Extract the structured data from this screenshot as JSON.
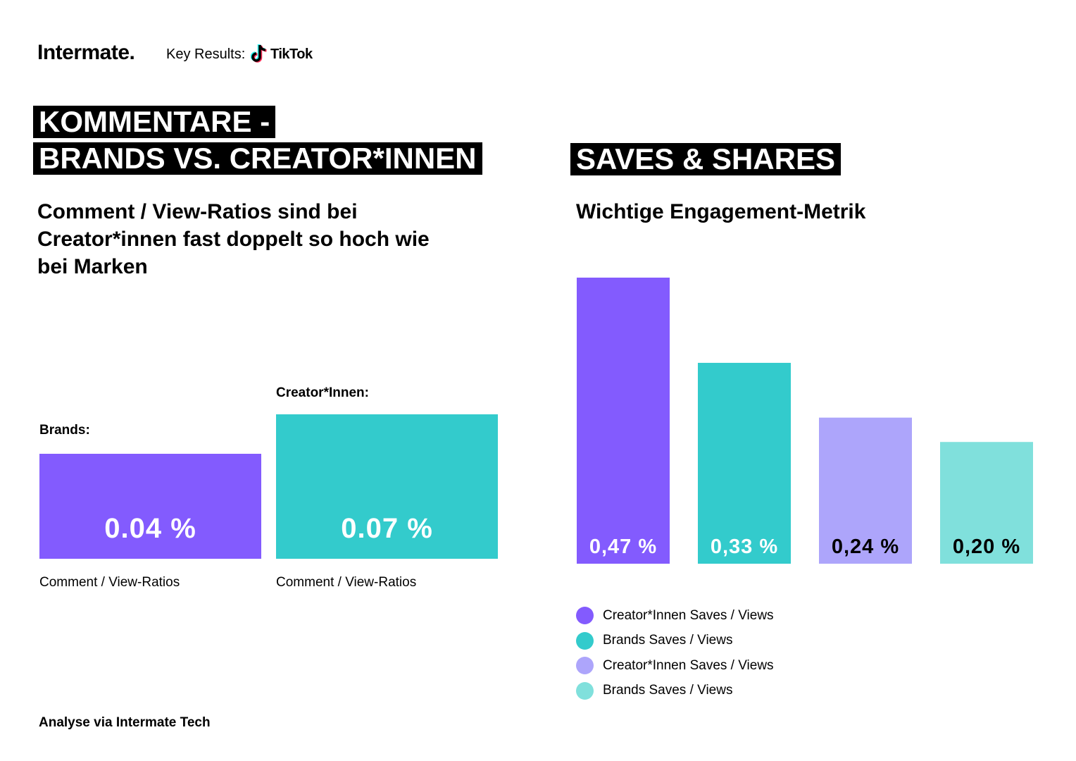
{
  "header": {
    "brand": "Intermate.",
    "key_results_label": "Key Results:",
    "platform": "TikTok",
    "platform_icon": "tiktok-note-icon"
  },
  "left": {
    "heading_line1": "KOMMENTARE -",
    "heading_line2": "BRANDS VS. CREATOR*INNEN",
    "subtitle_line1": "Comment / View-Ratios sind bei",
    "subtitle_line2": "Creator*innen fast doppelt so hoch wie",
    "subtitle_line3": "bei Marken",
    "brands_label": "Brands:",
    "brands_value": "0.04 %",
    "brands_caption": "Comment / View-Ratios",
    "creators_label": "Creator*Innen:",
    "creators_value": "0.07 %",
    "creators_caption": "Comment / View-Ratios",
    "colors": {
      "brands": "#835bfe",
      "creators": "#33cbcc"
    }
  },
  "right": {
    "heading": "SAVES & SHARES",
    "subtitle": "Wichtige Engagement-Metrik"
  },
  "chart_data": {
    "type": "bar",
    "title": "",
    "xlabel": "",
    "ylabel": "",
    "ylim": [
      0,
      0.47
    ],
    "grid": false,
    "legend_placement": "bottom-left",
    "series": [
      {
        "name": "Creator*Innen Saves / Views",
        "value": 0.47,
        "label": "0,47 %",
        "color": "#835bfe",
        "label_color": "#ffffff"
      },
      {
        "name": "Brands Saves / Views",
        "value": 0.33,
        "label": "0,33 %",
        "color": "#33cbcc",
        "label_color": "#ffffff"
      },
      {
        "name": "Creator*Innen Saves / Views",
        "value": 0.24,
        "label": "0,24 %",
        "color": "#ada5fb",
        "label_color": "#000000"
      },
      {
        "name": "Brands Saves / Views",
        "value": 0.2,
        "label": "0,20 %",
        "color": "#80e0dc",
        "label_color": "#000000"
      }
    ]
  },
  "footer": {
    "text": "Analyse via Intermate Tech"
  }
}
